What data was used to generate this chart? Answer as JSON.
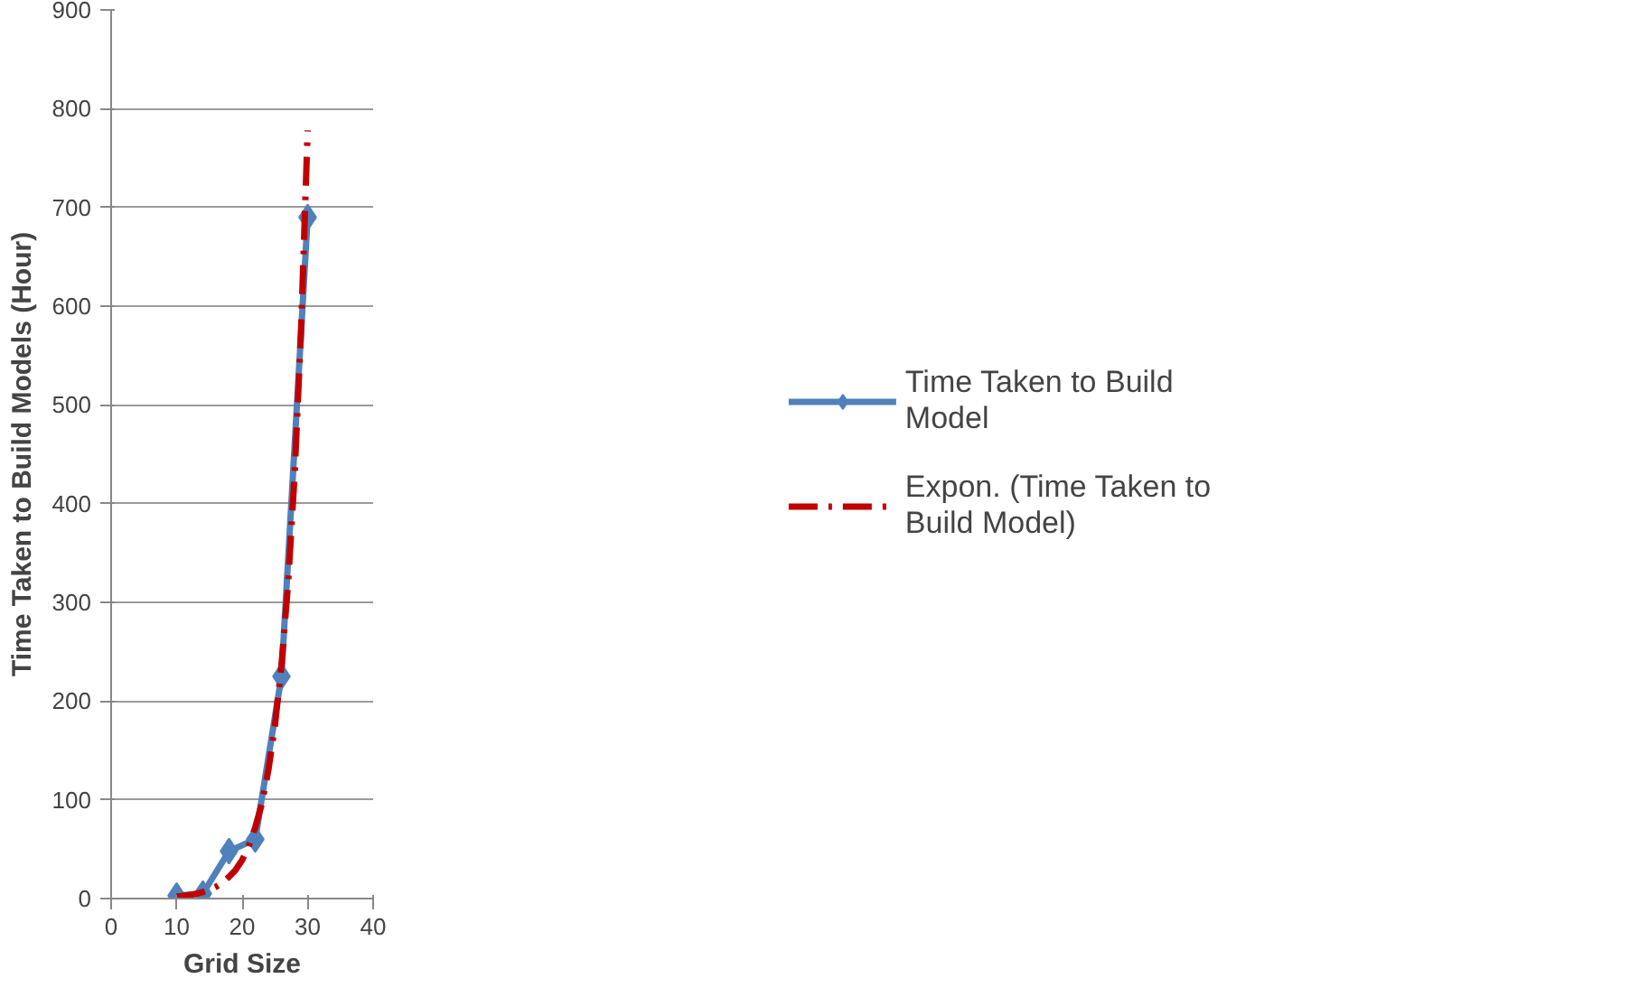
{
  "chart_data": {
    "type": "line",
    "xlabel": "Grid Size",
    "ylabel": "Time Taken to Build Models (Hour)",
    "xlim": [
      0,
      40
    ],
    "xticks": [
      0,
      10,
      20,
      30,
      40
    ],
    "ylim": [
      0,
      900
    ],
    "yticks": [
      0,
      100,
      200,
      300,
      400,
      500,
      600,
      700,
      800,
      900
    ],
    "grid": "y",
    "legend": "right",
    "series": [
      {
        "name": "Time Taken to Build Model",
        "color": "#4f81bd",
        "marker": "diamond",
        "line_style": "solid",
        "x": [
          10,
          14,
          18,
          22,
          26,
          30
        ],
        "values": [
          3,
          5,
          48,
          60,
          225,
          690
        ]
      },
      {
        "name": "Expon. (Time Taken to Build Model)",
        "color": "#c00000",
        "marker": "none",
        "line_style": "dashed",
        "x": [
          10,
          11,
          12,
          13,
          14,
          15,
          16,
          17,
          18,
          19,
          20,
          21,
          22,
          23,
          24,
          25,
          26,
          27,
          28,
          29,
          30
        ],
        "values": [
          2,
          2.7,
          3.6,
          4.9,
          6.6,
          8.9,
          12,
          16,
          22,
          29,
          39,
          53,
          72,
          96,
          130,
          175,
          236,
          318,
          428,
          577,
          778
        ]
      }
    ]
  }
}
